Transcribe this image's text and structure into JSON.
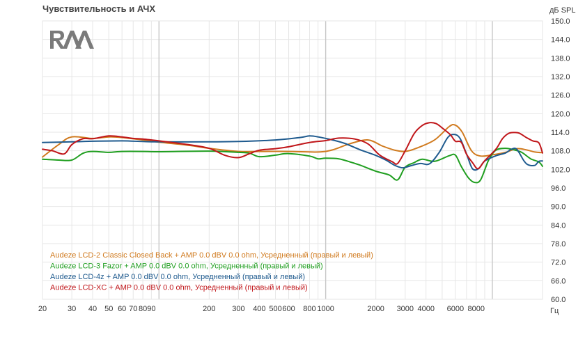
{
  "colors": {
    "background": "#ffffff",
    "grid_major": "#c8c8c8",
    "grid_minor": "#e6e6e6",
    "title": "#444444",
    "logo": "#7a7a7a"
  },
  "logo": {
    "text": "RAA",
    "icon": "raa-logo-icon"
  },
  "chart_data": {
    "type": "line",
    "title": "Чувствительность и АЧХ",
    "ylabel": "дБ SPL",
    "xlabel": "Гц",
    "xscale": "log",
    "xlim": [
      20,
      20000
    ],
    "ylim": [
      60,
      150
    ],
    "grid": true,
    "legend_position": "bottom-left",
    "x_ticks": [
      {
        "value": 20,
        "label": "20"
      },
      {
        "value": 30,
        "label": "30"
      },
      {
        "value": 40,
        "label": "40"
      },
      {
        "value": 50,
        "label": "50"
      },
      {
        "value": 60,
        "label": "60"
      },
      {
        "value": 70,
        "label": "70"
      },
      {
        "value": 80,
        "label": "80"
      },
      {
        "value": 90,
        "label": "90"
      },
      {
        "value": 200,
        "label": "200"
      },
      {
        "value": 300,
        "label": "300"
      },
      {
        "value": 400,
        "label": "400"
      },
      {
        "value": 500,
        "label": "500"
      },
      {
        "value": 600,
        "label": "600"
      },
      {
        "value": 800,
        "label": "800"
      },
      {
        "value": 1000,
        "label": "1000"
      },
      {
        "value": 2000,
        "label": "2000"
      },
      {
        "value": 3000,
        "label": "3000"
      },
      {
        "value": 4000,
        "label": "4000"
      },
      {
        "value": 6000,
        "label": "6000"
      },
      {
        "value": 8000,
        "label": "8000"
      }
    ],
    "y_ticks": [
      "60.0",
      "66.0",
      "72.0",
      "78.0",
      "84.0",
      "90.0",
      "96.0",
      "102.0",
      "108.0",
      "114.0",
      "120.0",
      "126.0",
      "132.0",
      "138.0",
      "144.0",
      "150.0"
    ],
    "series": [
      {
        "name": "Audeze LCD-2 Classic Closed Back +  AMP 0.0 dBV 0.0 ohm",
        "suffix": ", Усредненный (правый и левый)",
        "color": "#d07a1e",
        "points": [
          [
            20,
            106
          ],
          [
            25,
            110
          ],
          [
            30,
            112.5
          ],
          [
            40,
            112
          ],
          [
            50,
            112.5
          ],
          [
            60,
            112.3
          ],
          [
            80,
            111.5
          ],
          [
            100,
            110.8
          ],
          [
            150,
            109.8
          ],
          [
            200,
            108.8
          ],
          [
            300,
            107.8
          ],
          [
            400,
            107.8
          ],
          [
            600,
            107.8
          ],
          [
            900,
            107.6
          ],
          [
            1100,
            108.3
          ],
          [
            1400,
            110.3
          ],
          [
            1800,
            111.5
          ],
          [
            2200,
            109.5
          ],
          [
            2600,
            108.2
          ],
          [
            3000,
            107.8
          ],
          [
            3500,
            108.8
          ],
          [
            4500,
            111.5
          ],
          [
            5500,
            115.8
          ],
          [
            6000,
            116.3
          ],
          [
            6600,
            114
          ],
          [
            7500,
            108
          ],
          [
            8500,
            106.3
          ],
          [
            10000,
            106.7
          ],
          [
            12000,
            107.5
          ],
          [
            14000,
            108.7
          ],
          [
            16000,
            108.3
          ],
          [
            18000,
            107.6
          ],
          [
            20000,
            107.4
          ]
        ]
      },
      {
        "name": "Audeze LCD-3 Fazor +  AMP 0.0 dBV 0.0 ohm",
        "suffix": ", Усредненный (правый и левый)",
        "color": "#1f9e1f",
        "points": [
          [
            20,
            105.3
          ],
          [
            25,
            105
          ],
          [
            30,
            105
          ],
          [
            35,
            107.2
          ],
          [
            40,
            107.8
          ],
          [
            50,
            107.5
          ],
          [
            60,
            107.8
          ],
          [
            80,
            107.8
          ],
          [
            100,
            107.7
          ],
          [
            200,
            107.9
          ],
          [
            300,
            107.5
          ],
          [
            350,
            107.2
          ],
          [
            400,
            106.1
          ],
          [
            500,
            106.6
          ],
          [
            600,
            107.1
          ],
          [
            800,
            106.3
          ],
          [
            900,
            105.4
          ],
          [
            1000,
            105.6
          ],
          [
            1200,
            105.4
          ],
          [
            1400,
            104.4
          ],
          [
            1600,
            103.4
          ],
          [
            2000,
            101.4
          ],
          [
            2400,
            100.2
          ],
          [
            2700,
            98.6
          ],
          [
            3000,
            102.7
          ],
          [
            3400,
            104.2
          ],
          [
            3800,
            105.3
          ],
          [
            4500,
            104.6
          ],
          [
            5500,
            106.4
          ],
          [
            6000,
            106.6
          ],
          [
            6500,
            103
          ],
          [
            7200,
            99.2
          ],
          [
            7800,
            97.8
          ],
          [
            8500,
            98.6
          ],
          [
            9500,
            105
          ],
          [
            10500,
            108.2
          ],
          [
            12000,
            108.8
          ],
          [
            13500,
            108.3
          ],
          [
            15000,
            107.5
          ],
          [
            17000,
            105.4
          ],
          [
            19000,
            104.4
          ],
          [
            20000,
            103
          ]
        ]
      },
      {
        "name": "Audeze LCD-4z +  AMP 0.0 dBV 0.0 ohm",
        "suffix": ", Усредненный (правый и левый)",
        "color": "#1e5a8e",
        "points": [
          [
            20,
            110.7
          ],
          [
            30,
            110.9
          ],
          [
            40,
            111.1
          ],
          [
            60,
            111.2
          ],
          [
            80,
            111
          ],
          [
            100,
            110.9
          ],
          [
            200,
            110.9
          ],
          [
            300,
            111
          ],
          [
            500,
            111.5
          ],
          [
            700,
            112.3
          ],
          [
            800,
            112.8
          ],
          [
            900,
            112.5
          ],
          [
            1100,
            111.5
          ],
          [
            1300,
            110.4
          ],
          [
            1600,
            108.4
          ],
          [
            2000,
            106.5
          ],
          [
            2300,
            105
          ],
          [
            2600,
            103.3
          ],
          [
            2900,
            102.5
          ],
          [
            3300,
            103.3
          ],
          [
            3700,
            103.9
          ],
          [
            4200,
            103.8
          ],
          [
            4800,
            107.5
          ],
          [
            5400,
            112.3
          ],
          [
            5900,
            113.3
          ],
          [
            6400,
            112
          ],
          [
            7000,
            107
          ],
          [
            7600,
            102.2
          ],
          [
            8300,
            102.3
          ],
          [
            9000,
            104.7
          ],
          [
            10500,
            106.4
          ],
          [
            12000,
            107.3
          ],
          [
            13000,
            108.5
          ],
          [
            14000,
            108.5
          ],
          [
            15500,
            104.7
          ],
          [
            16500,
            103.4
          ],
          [
            18000,
            103.3
          ],
          [
            19000,
            104.6
          ],
          [
            20000,
            104.7
          ]
        ]
      },
      {
        "name": "Audeze LCD-XC +  AMP 0.0 dBV 0.0 ohm",
        "suffix": ", Усредненный (правый и левый)",
        "color": "#c0161a",
        "points": [
          [
            20,
            108.5
          ],
          [
            23,
            108
          ],
          [
            27,
            107
          ],
          [
            30,
            110
          ],
          [
            35,
            111.9
          ],
          [
            40,
            111.9
          ],
          [
            50,
            112.8
          ],
          [
            60,
            112.5
          ],
          [
            70,
            112
          ],
          [
            80,
            111.8
          ],
          [
            100,
            111.2
          ],
          [
            150,
            110
          ],
          [
            200,
            108.8
          ],
          [
            250,
            106.5
          ],
          [
            300,
            105.8
          ],
          [
            350,
            107.1
          ],
          [
            400,
            108.2
          ],
          [
            500,
            108.7
          ],
          [
            600,
            109.3
          ],
          [
            800,
            110.7
          ],
          [
            1000,
            111.3
          ],
          [
            1200,
            112.1
          ],
          [
            1500,
            111.8
          ],
          [
            1800,
            110.2
          ],
          [
            2100,
            106.7
          ],
          [
            2500,
            104.5
          ],
          [
            2700,
            103.9
          ],
          [
            3000,
            108
          ],
          [
            3400,
            113.6
          ],
          [
            3800,
            116.2
          ],
          [
            4200,
            117.1
          ],
          [
            4600,
            116.8
          ],
          [
            5000,
            115.4
          ],
          [
            5600,
            113.2
          ],
          [
            6000,
            111.1
          ],
          [
            6500,
            110.8
          ],
          [
            7000,
            106.9
          ],
          [
            7600,
            104.2
          ],
          [
            8200,
            102.2
          ],
          [
            9000,
            104.8
          ],
          [
            10500,
            108.5
          ],
          [
            11500,
            111.9
          ],
          [
            12500,
            113.6
          ],
          [
            13500,
            113.9
          ],
          [
            14500,
            113.7
          ],
          [
            16000,
            112.3
          ],
          [
            17500,
            111.2
          ],
          [
            19000,
            110.6
          ],
          [
            20000,
            107.3
          ]
        ]
      }
    ]
  }
}
